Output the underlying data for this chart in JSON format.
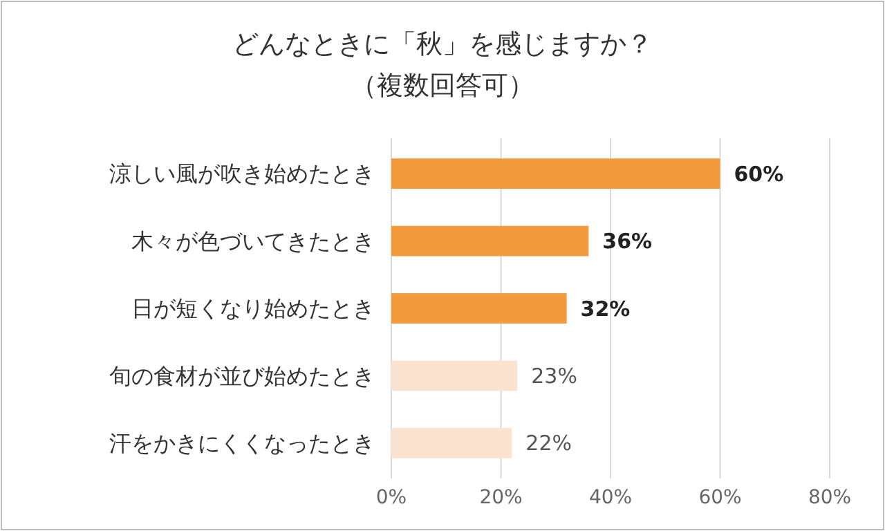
{
  "chart_data": {
    "type": "bar",
    "orientation": "horizontal",
    "title": "どんなときに「秋」を感じますか？",
    "subtitle": "（複数回答可）",
    "categories": [
      "涼しい風が吹き始めたとき",
      "木々が色づいてきたとき",
      "日が短くなり始めたとき",
      "旬の食材が並び始めたとき",
      "汗をかきにくくなったとき"
    ],
    "values": [
      60,
      36,
      32,
      23,
      22
    ],
    "colors": [
      "#f39a3c",
      "#f39a3c",
      "#f39a3c",
      "#fbe3d2",
      "#fbe3d2"
    ],
    "value_labels": [
      "60%",
      "36%",
      "32%",
      "23%",
      "22%"
    ],
    "xlim": [
      0,
      80
    ],
    "xticks": [
      {
        "value": 0,
        "label": "0%"
      },
      {
        "value": 20,
        "label": "20%"
      },
      {
        "value": 40,
        "label": "40%"
      },
      {
        "value": 60,
        "label": "60%"
      },
      {
        "value": 80,
        "label": "80%"
      }
    ],
    "grid": "x"
  }
}
